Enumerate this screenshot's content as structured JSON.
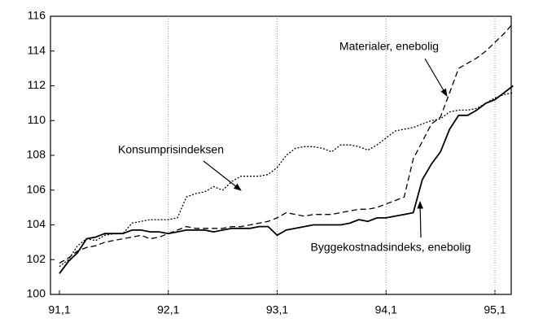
{
  "chart_data": {
    "type": "line",
    "categories": [
      "91,1",
      null,
      null,
      null,
      null,
      null,
      null,
      null,
      null,
      null,
      null,
      null,
      "92,1",
      null,
      null,
      null,
      null,
      null,
      null,
      null,
      null,
      null,
      null,
      null,
      "93,1",
      null,
      null,
      null,
      null,
      null,
      null,
      null,
      null,
      null,
      null,
      null,
      "94,1",
      null,
      null,
      null,
      null,
      null,
      null,
      null,
      null,
      null,
      null,
      null,
      "95,1",
      null,
      null
    ],
    "series": [
      {
        "name": "Byggekostnadsindeks, enebolig",
        "color": "#000000",
        "style": "solid",
        "values": [
          101.2,
          101.9,
          102.4,
          103.2,
          103.3,
          103.5,
          103.5,
          103.5,
          103.7,
          103.7,
          103.6,
          103.6,
          103.5,
          103.6,
          103.7,
          103.7,
          103.7,
          103.6,
          103.7,
          103.8,
          103.8,
          103.8,
          103.9,
          103.9,
          103.4,
          103.7,
          103.8,
          103.9,
          104.0,
          104.0,
          104.0,
          104.0,
          104.1,
          104.3,
          104.2,
          104.4,
          104.4,
          104.5,
          104.6,
          104.7,
          106.6,
          107.5,
          108.2,
          109.5,
          110.3,
          110.3,
          110.6,
          111.0,
          111.2,
          111.6,
          112.0
        ]
      },
      {
        "name": "Materialer, enebolig",
        "color": "#000000",
        "style": "dashed",
        "values": [
          101.8,
          102.1,
          102.5,
          102.7,
          102.8,
          103.0,
          103.1,
          103.2,
          103.3,
          103.4,
          103.2,
          103.3,
          103.5,
          103.7,
          103.9,
          103.8,
          103.8,
          103.8,
          103.8,
          103.9,
          103.9,
          104.0,
          104.1,
          104.2,
          104.4,
          104.7,
          104.6,
          104.5,
          104.6,
          104.6,
          104.6,
          104.7,
          104.8,
          104.9,
          104.9,
          105.0,
          105.2,
          105.4,
          105.6,
          107.8,
          108.8,
          109.8,
          110.2,
          111.6,
          113.0,
          113.3,
          113.6,
          114.0,
          114.5,
          115.0,
          115.6
        ]
      },
      {
        "name": "Konsumprisindeksen",
        "color": "#000000",
        "style": "dotted",
        "values": [
          101.6,
          102.0,
          102.8,
          103.2,
          103.1,
          103.4,
          103.5,
          103.5,
          104.1,
          104.2,
          104.3,
          104.3,
          104.3,
          104.4,
          105.6,
          105.8,
          105.9,
          106.2,
          106.0,
          106.5,
          106.8,
          106.8,
          106.8,
          106.9,
          107.3,
          108.0,
          108.4,
          108.5,
          108.5,
          108.4,
          108.2,
          108.6,
          108.6,
          108.5,
          108.3,
          108.6,
          109.0,
          109.4,
          109.5,
          109.6,
          109.8,
          110.0,
          110.1,
          110.5,
          110.6,
          110.6,
          110.7,
          111.0,
          111.3,
          111.5,
          111.6
        ]
      }
    ],
    "ylim": [
      100,
      116
    ],
    "yticks": [
      100,
      102,
      104,
      106,
      108,
      110,
      112,
      114,
      116
    ],
    "grid": "x"
  }
}
